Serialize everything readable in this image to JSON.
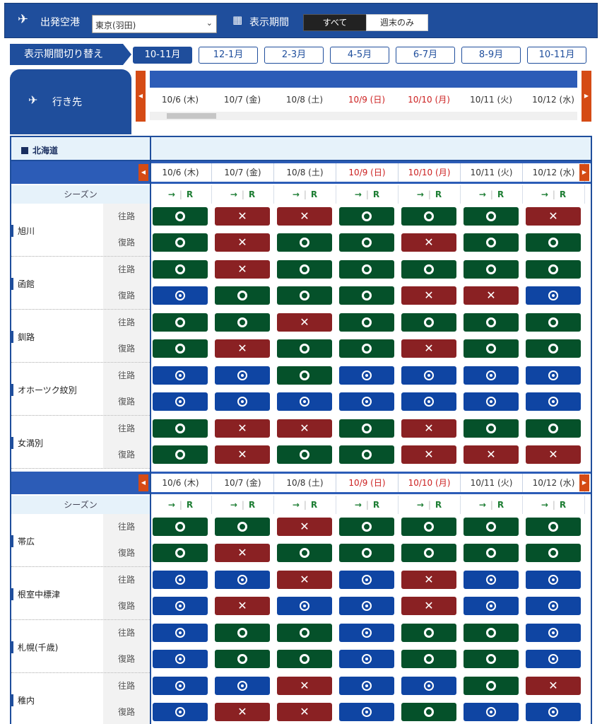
{
  "header": {
    "departure_label": "出発空港",
    "departure_value": "東京(羽田)",
    "period_label": "表示期間",
    "seg_all": "すべて",
    "seg_weekend": "週末のみ"
  },
  "period": {
    "switch_label": "表示期間切り替え",
    "active": "10-11月",
    "buttons": [
      "12-1月",
      "2-3月",
      "4-5月",
      "6-7月",
      "8-9月",
      "10-11月"
    ]
  },
  "destination_tab": "行き先",
  "dates": [
    "10/6 (木)",
    "10/7 (金)",
    "10/8 (土)",
    "10/9 (日)",
    "10/10 (月)",
    "10/11 (火)",
    "10/12 (水)"
  ],
  "holiday_flags": [
    false,
    false,
    false,
    true,
    true,
    false,
    false
  ],
  "region": "北海道",
  "season_label": "シーズン",
  "season_arrow": "→",
  "season_r": "R",
  "dir_out": "往路",
  "dir_ret": "復路",
  "legend_status_colors": {
    "g": "#05512a",
    "r": "#8a2123",
    "b": "#0f45a3"
  },
  "section1": [
    {
      "city": "旭川",
      "out": [
        "gO",
        "rX",
        "rX",
        "gO",
        "gO",
        "gO",
        "rX"
      ],
      "ret": [
        "gO",
        "rX",
        "gO",
        "gO",
        "rX",
        "gO",
        "gO"
      ]
    },
    {
      "city": "函館",
      "out": [
        "gO",
        "rX",
        "gO",
        "gO",
        "gO",
        "gO",
        "gO"
      ],
      "ret": [
        "bD",
        "gO",
        "gO",
        "gO",
        "rX",
        "rX",
        "bD"
      ]
    },
    {
      "city": "釧路",
      "out": [
        "gO",
        "gO",
        "rX",
        "gO",
        "gO",
        "gO",
        "gO"
      ],
      "ret": [
        "gO",
        "rX",
        "gO",
        "gO",
        "rX",
        "gO",
        "gO"
      ]
    },
    {
      "city": "オホーツク紋別",
      "out": [
        "bD",
        "bD",
        "gO",
        "bD",
        "bD",
        "bD",
        "bD"
      ],
      "ret": [
        "bD",
        "bD",
        "bD",
        "bD",
        "bD",
        "bD",
        "bD"
      ]
    },
    {
      "city": "女満別",
      "out": [
        "gO",
        "rX",
        "rX",
        "gO",
        "rX",
        "gO",
        "gO"
      ],
      "ret": [
        "gO",
        "rX",
        "gO",
        "gO",
        "rX",
        "rX",
        "rX"
      ]
    }
  ],
  "section2": [
    {
      "city": "帯広",
      "out": [
        "gO",
        "gO",
        "rX",
        "gO",
        "gO",
        "gO",
        "gO"
      ],
      "ret": [
        "gO",
        "rX",
        "gO",
        "gO",
        "gO",
        "gO",
        "gO"
      ]
    },
    {
      "city": "根室中標津",
      "out": [
        "bD",
        "bD",
        "rX",
        "bD",
        "rX",
        "bD",
        "bD"
      ],
      "ret": [
        "bD",
        "rX",
        "bD",
        "bD",
        "rX",
        "bD",
        "bD"
      ]
    },
    {
      "city": "札幌(千歳)",
      "out": [
        "bD",
        "gO",
        "gO",
        "bD",
        "gO",
        "gO",
        "bD"
      ],
      "ret": [
        "bD",
        "gO",
        "gO",
        "bD",
        "gO",
        "gO",
        "bD"
      ]
    },
    {
      "city": "稚内",
      "out": [
        "bD",
        "bD",
        "rX",
        "bD",
        "bD",
        "gO",
        "rX"
      ],
      "ret": [
        "bD",
        "rX",
        "rX",
        "bD",
        "gO",
        "bD",
        "bD"
      ]
    }
  ]
}
